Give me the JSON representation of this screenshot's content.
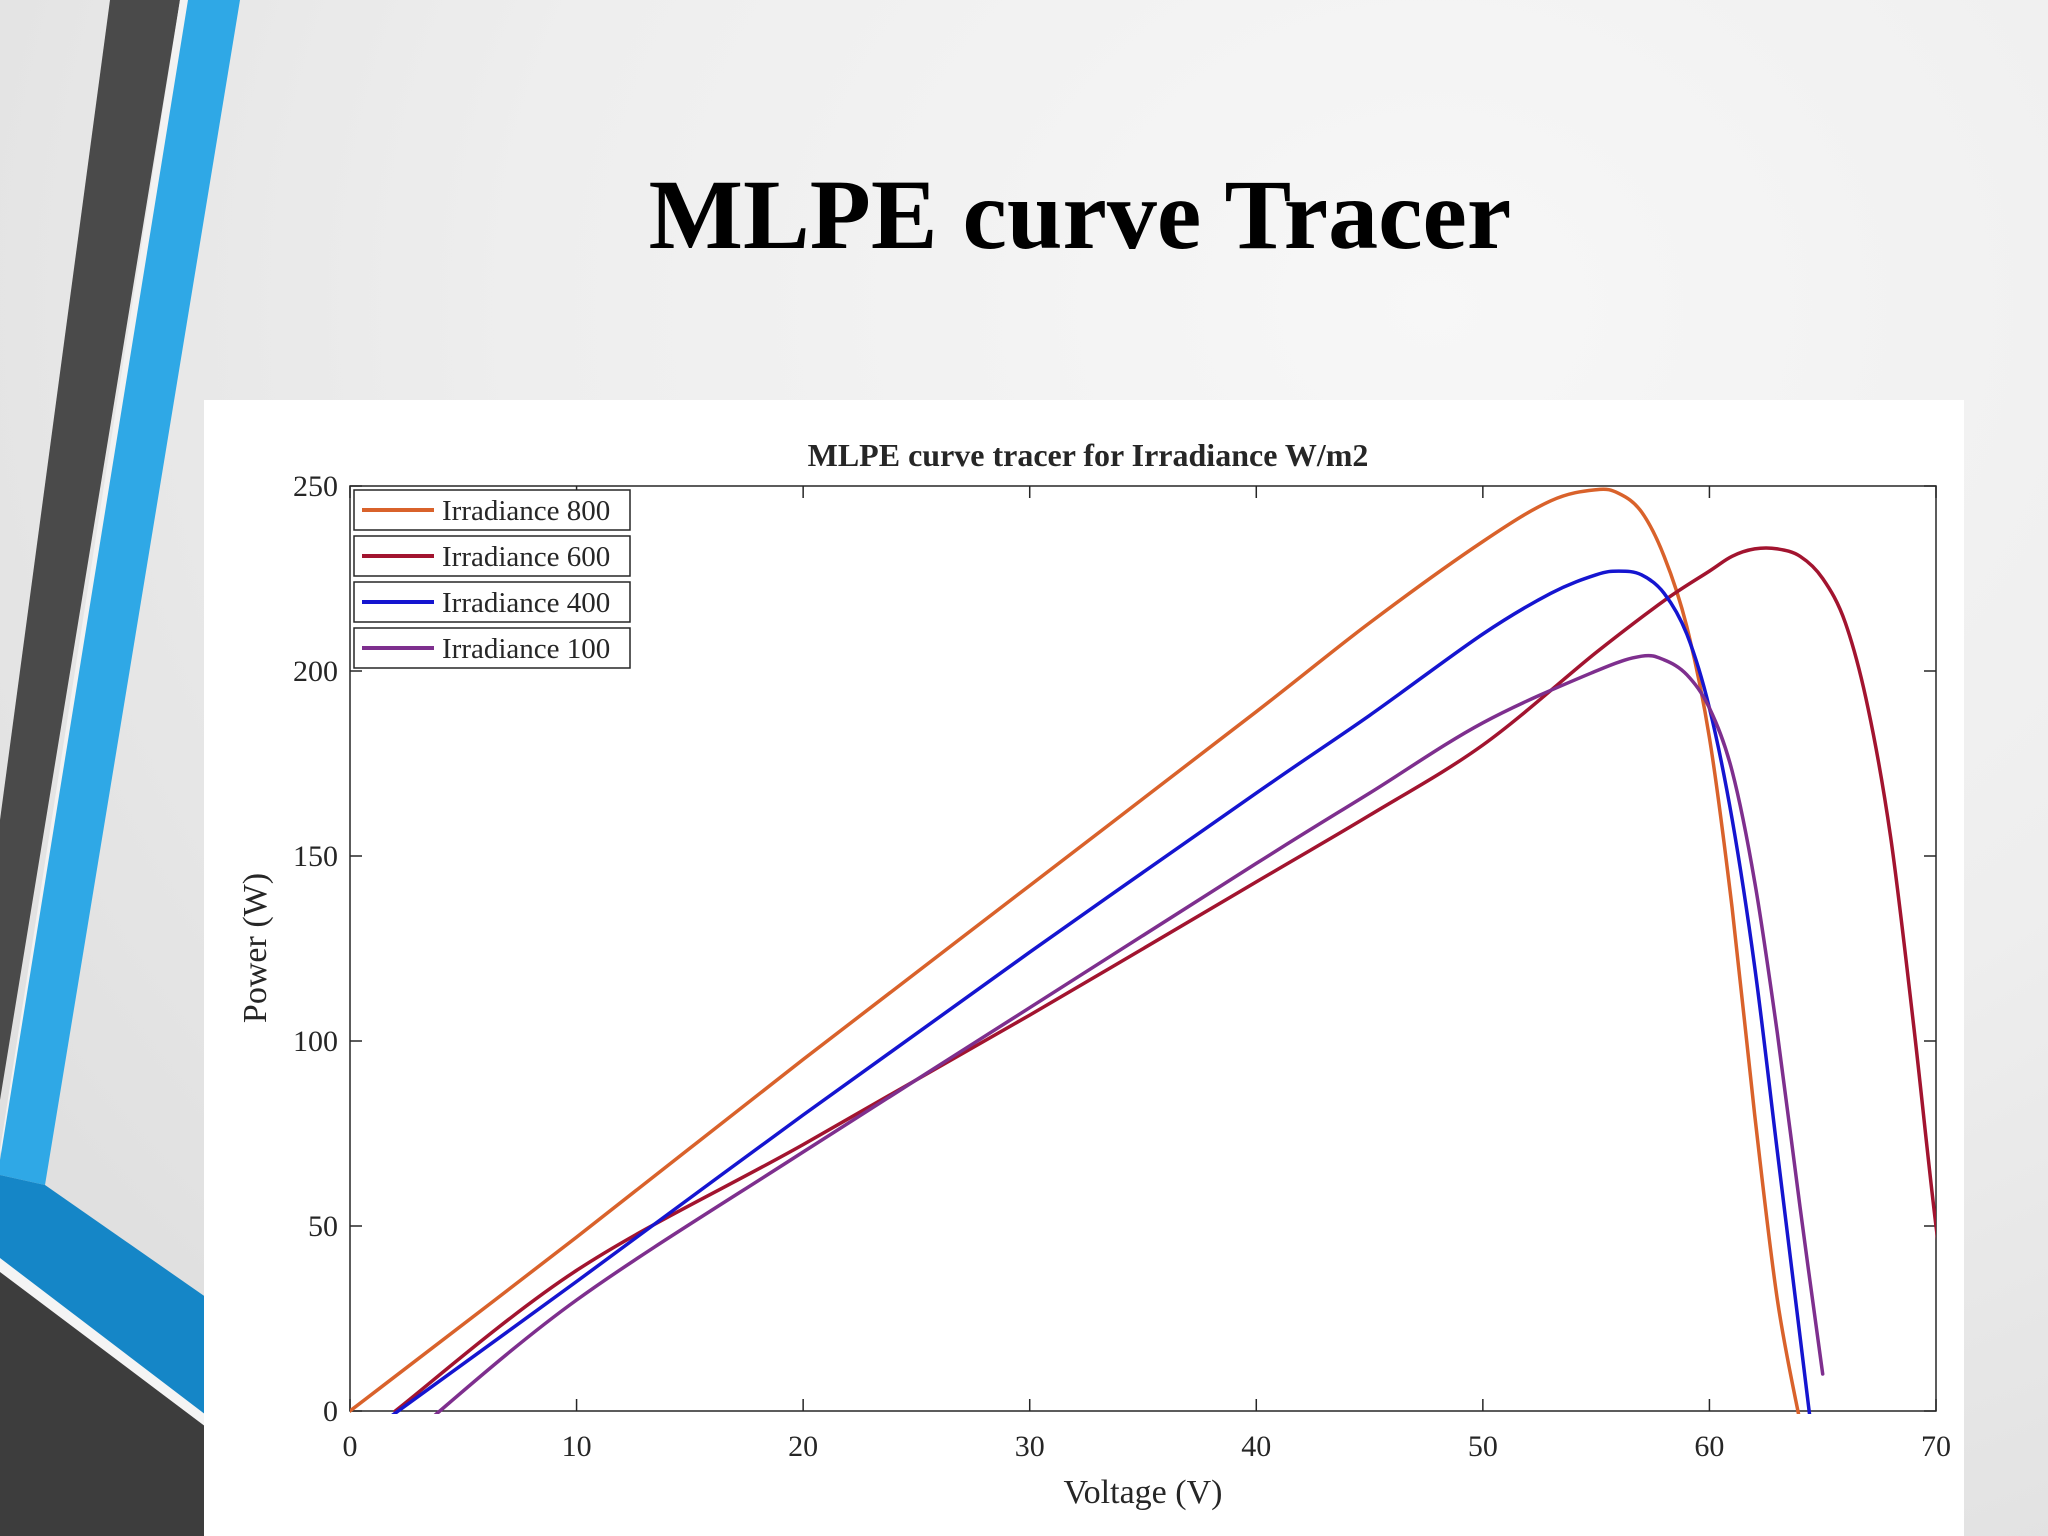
{
  "slide": {
    "title": "MLPE curve Tracer"
  },
  "colors": {
    "accent_blue": "#2FA8E6",
    "accent_gray": "#4a4a4a",
    "panel_background": "#ffffff"
  },
  "chart_data": {
    "type": "line",
    "title": "MLPE curve tracer for Irradiance W/m2",
    "xlabel": "Voltage (V)",
    "ylabel": "Power (W)",
    "xlim": [
      0,
      70
    ],
    "ylim": [
      0,
      250
    ],
    "xticks": [
      0,
      10,
      20,
      30,
      40,
      50,
      60,
      70
    ],
    "yticks": [
      0,
      50,
      100,
      150,
      200,
      250
    ],
    "grid": false,
    "legend_position": "top-left",
    "series": [
      {
        "name": "Irradiance 800",
        "color": "#D9622B",
        "x": [
          0,
          10,
          20,
          30,
          40,
          45,
          50,
          53,
          55,
          56,
          57,
          58,
          59,
          60,
          61,
          62,
          63,
          64
        ],
        "y": [
          0,
          47,
          95,
          142,
          189,
          213,
          235,
          246,
          249,
          248,
          243,
          231,
          212,
          182,
          136,
          80,
          30,
          -3
        ]
      },
      {
        "name": "Irradiance 600",
        "color": "#A2142F",
        "x": [
          2,
          10,
          20,
          30,
          40,
          45,
          50,
          55,
          58,
          60,
          61,
          62,
          63,
          64,
          65,
          66,
          67,
          68,
          69,
          70,
          71
        ],
        "y": [
          0,
          38,
          72,
          107,
          143,
          161,
          180,
          205,
          219,
          227,
          231,
          233,
          233,
          231,
          225,
          213,
          190,
          155,
          105,
          50,
          5
        ]
      },
      {
        "name": "Irradiance 400",
        "color": "#1515D0",
        "x": [
          1,
          10,
          20,
          30,
          40,
          45,
          50,
          53,
          55,
          56,
          57,
          58,
          59,
          60,
          61,
          62,
          63,
          64,
          64.5
        ],
        "y": [
          -5,
          35,
          80,
          124,
          167,
          188,
          210,
          221,
          226,
          227,
          226,
          221,
          210,
          190,
          160,
          120,
          70,
          20,
          -5
        ]
      },
      {
        "name": "Irradiance 100",
        "color": "#7E2F8E",
        "x": [
          3,
          10,
          20,
          30,
          40,
          45,
          50,
          55,
          57,
          58,
          59,
          60,
          61,
          62,
          63,
          64,
          65
        ],
        "y": [
          -5,
          30,
          70,
          109,
          148,
          167,
          186,
          200,
          204,
          203,
          199,
          190,
          173,
          143,
          102,
          55,
          10
        ]
      }
    ]
  }
}
